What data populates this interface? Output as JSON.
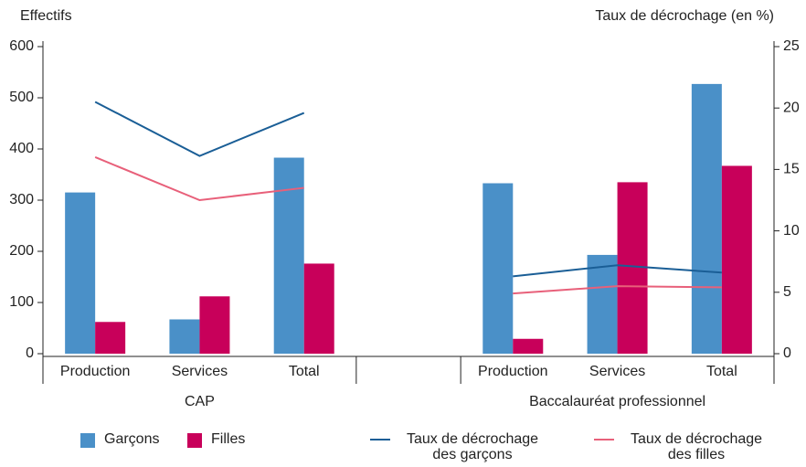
{
  "chart_data": {
    "type": "bar",
    "y_label": "Effectifs",
    "y2_label": "Taux de décrochage (en %)",
    "categories": [
      "Production",
      "Services",
      "Total",
      null,
      "Production",
      "Services",
      "Total"
    ],
    "groups": [
      "CAP",
      "Baccalauréat professionnel"
    ],
    "ylim": [
      0,
      600
    ],
    "yticks": [
      0,
      100,
      200,
      300,
      400,
      500,
      600
    ],
    "y2lim": [
      0,
      25
    ],
    "y2ticks": [
      0,
      5,
      10,
      15,
      20,
      25
    ],
    "series": [
      {
        "name": "Garçons",
        "type": "bar",
        "color": "#4a90c8",
        "values": [
          315,
          67,
          383,
          null,
          333,
          193,
          527
        ]
      },
      {
        "name": "Filles",
        "type": "bar",
        "color": "#c8005a",
        "values": [
          62,
          112,
          176,
          null,
          29,
          335,
          367
        ]
      },
      {
        "name": "Taux de décrochage des garçons",
        "type": "line",
        "axis": "y2",
        "color": "#1a5e96",
        "values": [
          20.5,
          16.1,
          19.6,
          null,
          6.3,
          7.2,
          6.6
        ]
      },
      {
        "name": "Taux de décrochage des filles",
        "type": "line",
        "axis": "y2",
        "color": "#e8607a",
        "values": [
          16.0,
          12.5,
          13.5,
          null,
          4.9,
          5.5,
          5.4
        ]
      }
    ]
  }
}
